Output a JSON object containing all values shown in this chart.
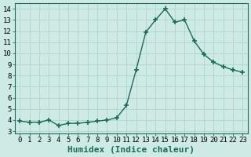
{
  "x": [
    0,
    1,
    2,
    3,
    4,
    5,
    6,
    7,
    8,
    9,
    10,
    11,
    12,
    13,
    14,
    15,
    16,
    17,
    18,
    19,
    20,
    21,
    22,
    23
  ],
  "y": [
    3.9,
    3.8,
    3.8,
    4.0,
    3.5,
    3.7,
    3.7,
    3.8,
    3.9,
    4.0,
    4.2,
    5.3,
    8.5,
    11.9,
    13.0,
    14.0,
    12.8,
    13.0,
    11.1,
    9.9,
    9.2,
    8.8,
    8.5,
    8.3
  ],
  "line_color": "#1a6b5a",
  "marker": "+",
  "marker_size": 4,
  "bg_color": "#ceeae4",
  "grid_color": "#b0d4cc",
  "xlabel": "Humidex (Indice chaleur)",
  "ylabel": "",
  "xlim": [
    -0.5,
    23.5
  ],
  "ylim": [
    2.8,
    14.5
  ],
  "yticks": [
    3,
    4,
    5,
    6,
    7,
    8,
    9,
    10,
    11,
    12,
    13,
    14
  ],
  "xticks": [
    0,
    1,
    2,
    3,
    4,
    5,
    6,
    7,
    8,
    9,
    10,
    11,
    12,
    13,
    14,
    15,
    16,
    17,
    18,
    19,
    20,
    21,
    22,
    23
  ],
  "tick_fontsize": 6.5,
  "xlabel_fontsize": 8,
  "linewidth": 1.0
}
